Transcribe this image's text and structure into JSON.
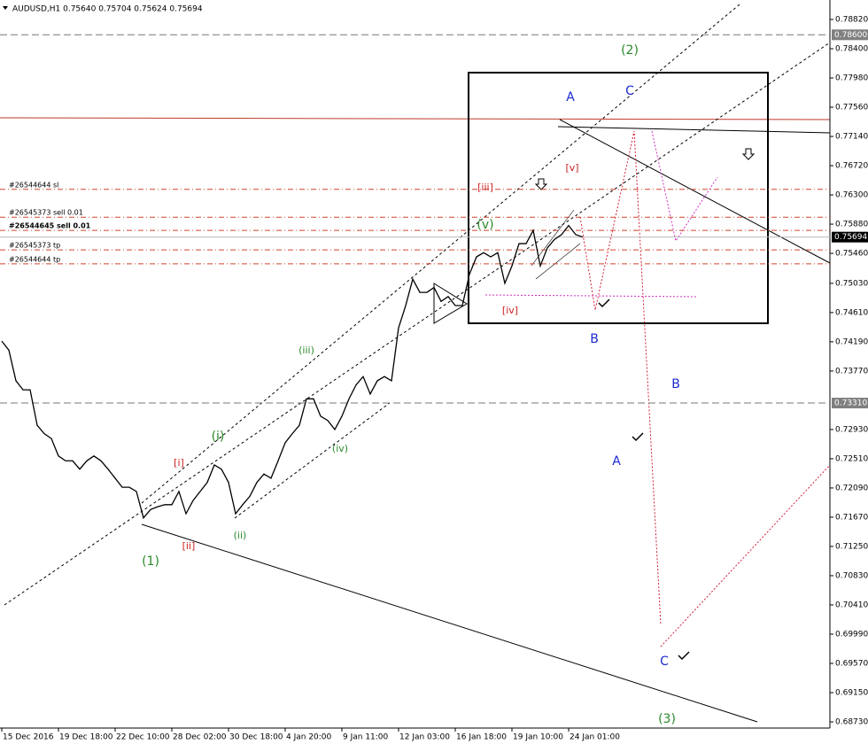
{
  "chart_data": {
    "type": "line",
    "title": "AUDUSD,H1  0.75640 0.75704 0.75624 0.75694",
    "color": "#000000",
    "categories": [
      "15 Dec 2016",
      null,
      null,
      null,
      null,
      null,
      null,
      null,
      "19 Dec 18:00",
      null,
      null,
      null,
      null,
      null,
      null,
      null,
      "22 Dec 10:00",
      null,
      null,
      null,
      null,
      null,
      null,
      null,
      "28 Dec 02:00",
      null,
      null,
      null,
      null,
      null,
      null,
      null,
      "30 Dec 18:00",
      null,
      null,
      null,
      null,
      null,
      null,
      null,
      "4 Jan 20:00",
      null,
      null,
      null,
      null,
      null,
      null,
      null,
      "9 Jan 11:00",
      null,
      null,
      null,
      null,
      null,
      null,
      null,
      "12 Jan 03:00",
      null,
      null,
      null,
      null,
      null,
      null,
      null,
      "16 Jan 18:00",
      null,
      null,
      null,
      null,
      null,
      null,
      null,
      "19 Jan 10:00",
      null,
      null,
      null,
      null,
      null,
      null,
      null,
      "24 Jan 01:00",
      null,
      null
    ],
    "values": [
      0.742,
      0.7407,
      0.7363,
      0.735,
      0.735,
      0.7299,
      0.7287,
      0.728,
      0.7255,
      0.7248,
      0.7248,
      0.7236,
      0.7248,
      0.7255,
      0.7248,
      0.7236,
      0.7223,
      0.721,
      0.721,
      0.7204,
      0.7166,
      0.7178,
      0.7182,
      0.7185,
      0.7185,
      0.7204,
      0.7172,
      0.7191,
      0.7204,
      0.7217,
      0.7242,
      0.7236,
      0.7217,
      0.7172,
      0.7185,
      0.7197,
      0.7217,
      0.7229,
      0.7223,
      0.7248,
      0.7274,
      0.7287,
      0.7299,
      0.7337,
      0.7337,
      0.7312,
      0.7306,
      0.7293,
      0.7312,
      0.7337,
      0.7357,
      0.7369,
      0.7344,
      0.7363,
      0.7369,
      0.7363,
      0.7439,
      0.7471,
      0.7509,
      0.749,
      0.749,
      0.7497,
      0.7477,
      0.7484,
      0.7471,
      0.7471,
      0.7516,
      0.7541,
      0.7547,
      0.7541,
      0.7547,
      0.7503,
      0.7528,
      0.756,
      0.756,
      0.7579,
      0.7528,
      0.7554,
      0.7566,
      0.7573,
      0.7586,
      0.7573,
      0.75694
    ],
    "ylim": [
      0.68641,
      0.791
    ],
    "yticks": [
      {
        "value": 0.7882,
        "label": "0.78820"
      },
      {
        "value": 0.784,
        "label": "0.78400"
      },
      {
        "value": 0.7798,
        "label": "0.77980"
      },
      {
        "value": 0.7756,
        "label": "0.77560"
      },
      {
        "value": 0.7714,
        "label": "0.77140"
      },
      {
        "value": 0.7672,
        "label": "0.76720"
      },
      {
        "value": 0.763,
        "label": "0.76300"
      },
      {
        "value": 0.7588,
        "label": "0.75880"
      },
      {
        "value": 0.7546,
        "label": "0.75460"
      },
      {
        "value": 0.7503,
        "label": "0.75030"
      },
      {
        "value": 0.7461,
        "label": "0.74610"
      },
      {
        "value": 0.7419,
        "label": "0.74190"
      },
      {
        "value": 0.7377,
        "label": "0.73770"
      },
      {
        "value": 0.7293,
        "label": "0.72930"
      },
      {
        "value": 0.7251,
        "label": "0.72510"
      },
      {
        "value": 0.7209,
        "label": "0.72090"
      },
      {
        "value": 0.7167,
        "label": "0.71670"
      },
      {
        "value": 0.7125,
        "label": "0.71250"
      },
      {
        "value": 0.7083,
        "label": "0.70830"
      },
      {
        "value": 0.7041,
        "label": "0.70410"
      },
      {
        "value": 0.6999,
        "label": "0.69990"
      },
      {
        "value": 0.6957,
        "label": "0.69570"
      },
      {
        "value": 0.6915,
        "label": "0.69150"
      },
      {
        "value": 0.6873,
        "label": "0.68730"
      }
    ],
    "hlines": [
      {
        "value": 0.786,
        "label": "0.78600"
      },
      {
        "value": 0.7331,
        "label": "0.73310"
      }
    ],
    "last_price": 0.75694,
    "orders": [
      {
        "label": "#26544644 sl",
        "value": 0.7638
      },
      {
        "label": "#26545373 sell 0.01",
        "value": 0.7598
      },
      {
        "label": "#26544645 sell 0.01",
        "value": 0.7579
      },
      {
        "label": "#26545373 tp",
        "value": 0.7551
      },
      {
        "label": "#26544644 tp",
        "value": 0.7531
      }
    ],
    "annotations": [
      {
        "text": "(2)",
        "color": "#2a8a2a"
      },
      {
        "text": "A",
        "color": "#1c2bd0"
      },
      {
        "text": "C",
        "color": "#1c2bd0"
      },
      {
        "text": "[v]",
        "color": "#cc1f1f"
      },
      {
        "text": "[iii]",
        "color": "#cc1f1f"
      },
      {
        "text": "(v)",
        "color": "#2a8a2a"
      },
      {
        "text": "[iv]",
        "color": "#cc1f1f"
      },
      {
        "text": "B",
        "color": "#1c2bd0"
      },
      {
        "text": "B",
        "color": "#1c2bd0"
      },
      {
        "text": "A",
        "color": "#1c2bd0"
      },
      {
        "text": "(iii)",
        "color": "#2a8a2a"
      },
      {
        "text": "(i)",
        "color": "#2a8a2a"
      },
      {
        "text": "(iv)",
        "color": "#2a8a2a"
      },
      {
        "text": "[i]",
        "color": "#cc1f1f"
      },
      {
        "text": "(ii)",
        "color": "#2a8a2a"
      },
      {
        "text": "[ii]",
        "color": "#cc1f1f"
      },
      {
        "text": "(1)",
        "color": "#2a8a2a"
      },
      {
        "text": "C",
        "color": "#1c2bd0"
      },
      {
        "text": "(3)",
        "color": "#2a8a2a"
      }
    ]
  }
}
